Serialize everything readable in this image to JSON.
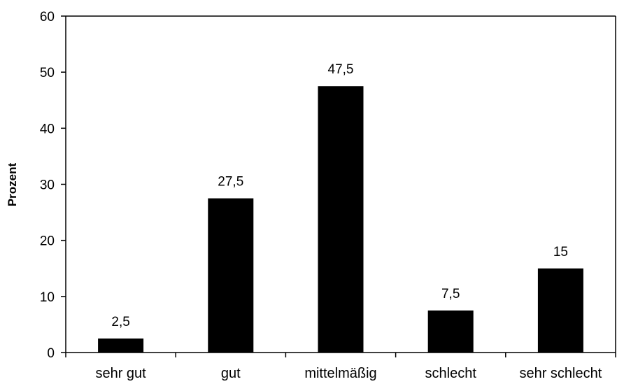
{
  "chart_data": {
    "type": "bar",
    "categories": [
      "sehr gut",
      "gut",
      "mittelmäßig",
      "schlecht",
      "sehr schlecht"
    ],
    "values": [
      2.5,
      27.5,
      47.5,
      7.5,
      15
    ],
    "value_labels": [
      "2,5",
      "27,5",
      "47,5",
      "7,5",
      "15"
    ],
    "ylabel": "Prozent",
    "xlabel": "",
    "title": "",
    "ylim": [
      0,
      60
    ],
    "yticks": [
      0,
      10,
      20,
      30,
      40,
      50,
      60
    ],
    "grid": false,
    "bar_color": "#000000"
  }
}
